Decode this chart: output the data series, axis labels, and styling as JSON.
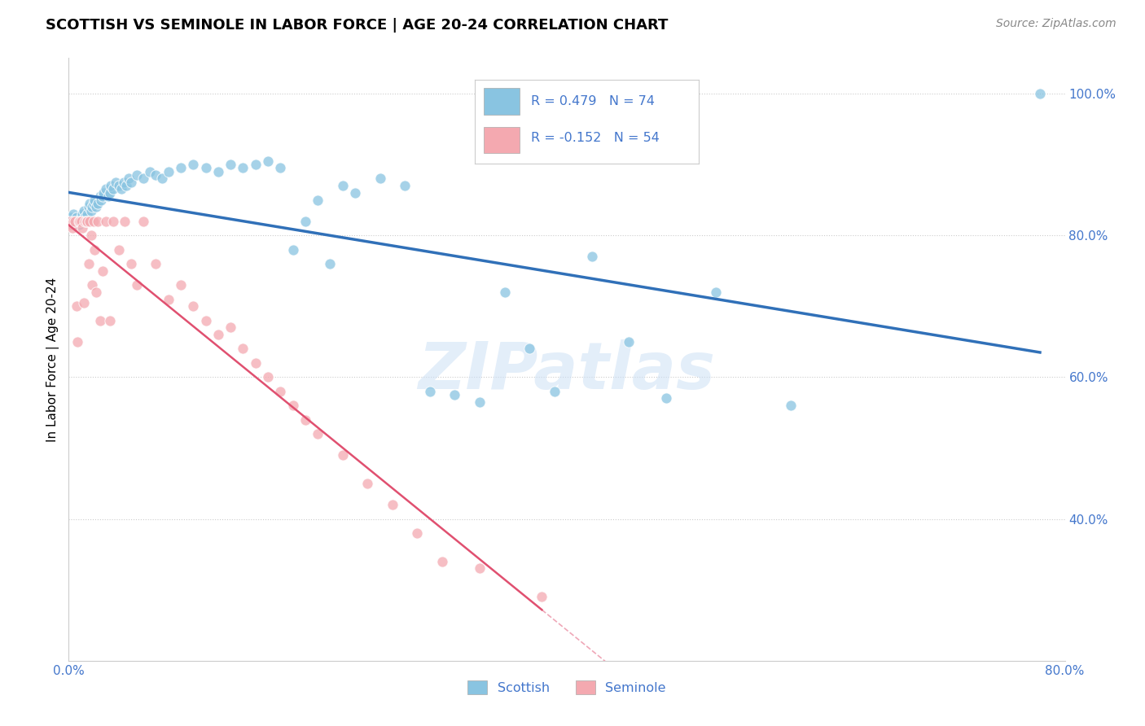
{
  "title": "SCOTTISH VS SEMINOLE IN LABOR FORCE | AGE 20-24 CORRELATION CHART",
  "source": "Source: ZipAtlas.com",
  "ylabel": "In Labor Force | Age 20-24",
  "xlim": [
    0.0,
    0.8
  ],
  "ylim": [
    0.2,
    1.05
  ],
  "scottish_color": "#89c4e1",
  "seminole_color": "#f4a9b0",
  "scottish_line_color": "#3070b8",
  "seminole_line_color": "#e05070",
  "scottish_R": 0.479,
  "scottish_N": 74,
  "seminole_R": -0.152,
  "seminole_N": 54,
  "tick_color": "#4477cc",
  "scottish_x": [
    0.001,
    0.002,
    0.003,
    0.004,
    0.005,
    0.006,
    0.007,
    0.008,
    0.009,
    0.01,
    0.011,
    0.012,
    0.013,
    0.014,
    0.015,
    0.016,
    0.017,
    0.018,
    0.019,
    0.02,
    0.021,
    0.022,
    0.023,
    0.025,
    0.026,
    0.027,
    0.028,
    0.03,
    0.032,
    0.033,
    0.034,
    0.036,
    0.038,
    0.04,
    0.042,
    0.044,
    0.046,
    0.048,
    0.05,
    0.055,
    0.06,
    0.065,
    0.07,
    0.075,
    0.08,
    0.09,
    0.1,
    0.11,
    0.12,
    0.13,
    0.14,
    0.15,
    0.16,
    0.17,
    0.18,
    0.19,
    0.2,
    0.21,
    0.22,
    0.23,
    0.25,
    0.27,
    0.29,
    0.31,
    0.33,
    0.35,
    0.37,
    0.39,
    0.42,
    0.45,
    0.48,
    0.52,
    0.58,
    0.78
  ],
  "scottish_y": [
    0.82,
    0.825,
    0.815,
    0.83,
    0.82,
    0.825,
    0.82,
    0.815,
    0.82,
    0.825,
    0.83,
    0.835,
    0.825,
    0.82,
    0.83,
    0.84,
    0.845,
    0.835,
    0.84,
    0.845,
    0.85,
    0.84,
    0.845,
    0.855,
    0.85,
    0.855,
    0.86,
    0.865,
    0.855,
    0.86,
    0.87,
    0.865,
    0.875,
    0.87,
    0.865,
    0.875,
    0.87,
    0.88,
    0.875,
    0.885,
    0.88,
    0.89,
    0.885,
    0.88,
    0.89,
    0.895,
    0.9,
    0.895,
    0.89,
    0.9,
    0.895,
    0.9,
    0.905,
    0.895,
    0.78,
    0.82,
    0.85,
    0.76,
    0.87,
    0.86,
    0.88,
    0.87,
    0.58,
    0.575,
    0.565,
    0.72,
    0.64,
    0.58,
    0.77,
    0.65,
    0.57,
    0.72,
    0.56,
    1.0
  ],
  "seminole_x": [
    0.001,
    0.002,
    0.003,
    0.004,
    0.005,
    0.006,
    0.007,
    0.008,
    0.009,
    0.01,
    0.011,
    0.012,
    0.013,
    0.014,
    0.015,
    0.016,
    0.017,
    0.018,
    0.019,
    0.02,
    0.021,
    0.022,
    0.023,
    0.025,
    0.027,
    0.03,
    0.033,
    0.036,
    0.04,
    0.045,
    0.05,
    0.055,
    0.06,
    0.07,
    0.08,
    0.09,
    0.1,
    0.11,
    0.12,
    0.13,
    0.14,
    0.15,
    0.16,
    0.17,
    0.18,
    0.19,
    0.2,
    0.22,
    0.24,
    0.26,
    0.28,
    0.3,
    0.33,
    0.38
  ],
  "seminole_y": [
    0.82,
    0.815,
    0.81,
    0.82,
    0.82,
    0.7,
    0.65,
    0.82,
    0.82,
    0.82,
    0.81,
    0.705,
    0.82,
    0.82,
    0.82,
    0.76,
    0.82,
    0.8,
    0.73,
    0.82,
    0.78,
    0.72,
    0.82,
    0.68,
    0.75,
    0.82,
    0.68,
    0.82,
    0.78,
    0.82,
    0.76,
    0.73,
    0.82,
    0.76,
    0.71,
    0.73,
    0.7,
    0.68,
    0.66,
    0.67,
    0.64,
    0.62,
    0.6,
    0.58,
    0.56,
    0.54,
    0.52,
    0.49,
    0.45,
    0.42,
    0.38,
    0.34,
    0.33,
    0.29
  ]
}
